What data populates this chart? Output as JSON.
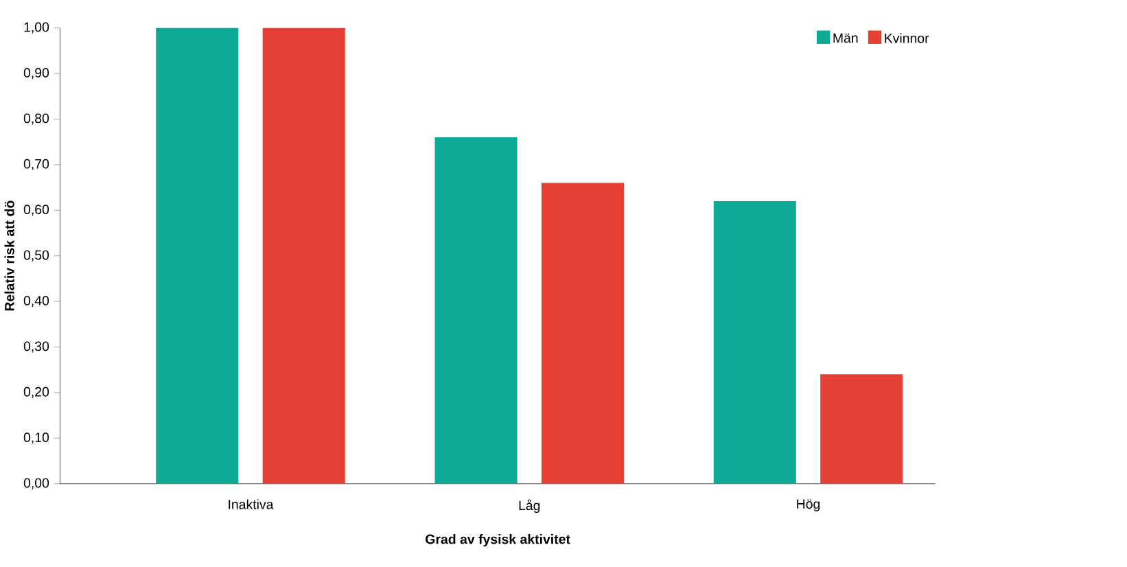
{
  "chart_data": {
    "type": "bar",
    "xlabel": "Grad av fysisk aktivitet",
    "ylabel": "Relativ risk att dö",
    "categories": [
      "Inaktiva",
      "Låg",
      "Hög"
    ],
    "series": [
      {
        "name": "Män",
        "color": "#0fa996",
        "values": [
          1.0,
          0.76,
          0.62
        ]
      },
      {
        "name": "Kvinnor",
        "color": "#e63f33",
        "values": [
          1.0,
          0.66,
          0.24
        ]
      }
    ],
    "ylim": [
      0,
      1
    ],
    "yticks": [
      {
        "value": 0,
        "label": "0,00"
      },
      {
        "value": 0.1,
        "label": "0,10"
      },
      {
        "value": 0.2,
        "label": "0,20"
      },
      {
        "value": 0.3,
        "label": "0,30"
      },
      {
        "value": 0.4,
        "label": "0,40"
      },
      {
        "value": 0.5,
        "label": "0,50"
      },
      {
        "value": 0.6,
        "label": "0,60"
      },
      {
        "value": 0.7,
        "label": "0,70"
      },
      {
        "value": 0.8,
        "label": "0,80"
      },
      {
        "value": 0.9,
        "label": "0,90"
      },
      {
        "value": 1.0,
        "label": "1,00"
      }
    ],
    "grid": false,
    "legend": "top right"
  }
}
